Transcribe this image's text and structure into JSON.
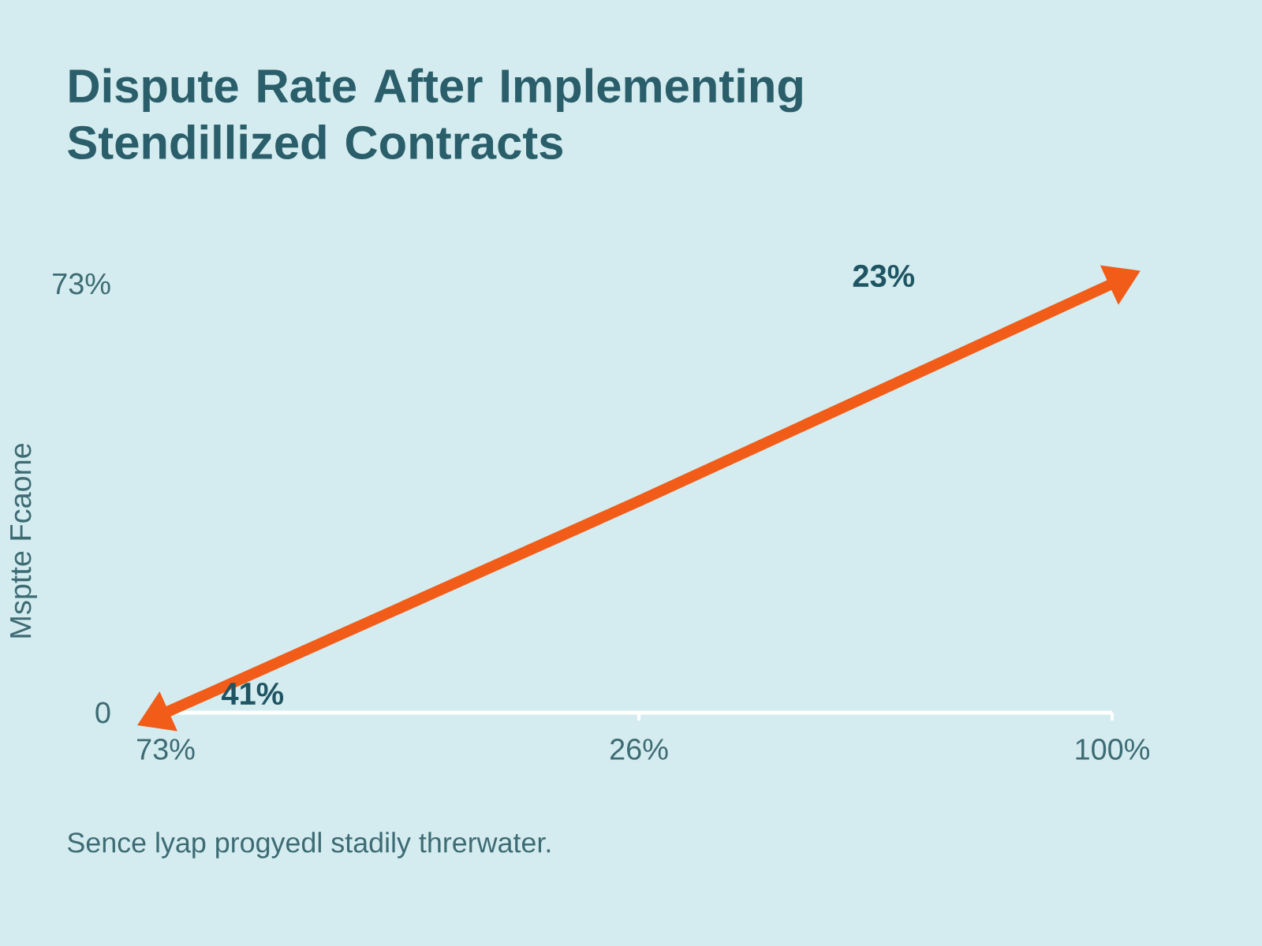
{
  "chart_data": {
    "type": "line",
    "title": "Dispute Rate After Implementing Stendillized Contracts",
    "ylabel": "Msptte Fcaone",
    "categories": [
      "73%",
      "26%",
      "100%"
    ],
    "series": [
      {
        "color": "#f25c19",
        "values": [
          0,
          36,
          73
        ]
      }
    ],
    "ylim": [
      0,
      73
    ],
    "yticks": [
      {
        "value": 0,
        "label": "0"
      },
      {
        "value": 73,
        "label": "73%"
      }
    ],
    "line_style": "solid",
    "grid": false,
    "annotations": [
      "41%",
      "23%",
      "Sence lyap progyedl stadily threrwater."
    ]
  }
}
